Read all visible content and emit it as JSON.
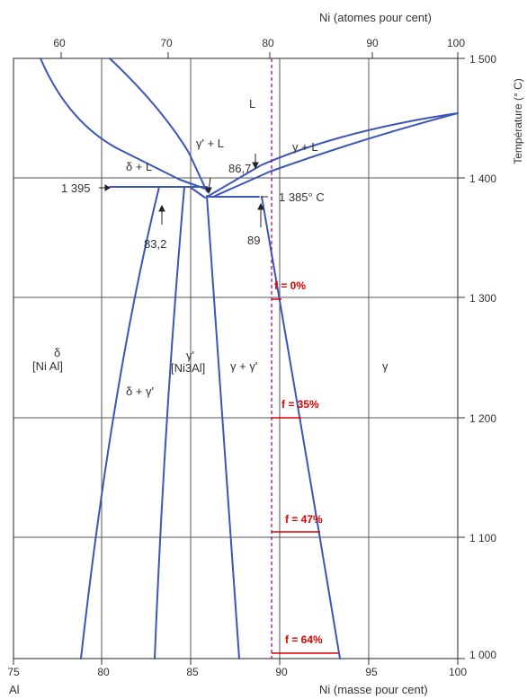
{
  "axes": {
    "top_title": "Ni (atomes pour cent)",
    "bottom_title": "Ni (masse pour cent)",
    "right_title": "Température (° C)",
    "bottom_left_label": "Al",
    "top_ticks": [
      "60",
      "70",
      "80",
      "90",
      "100"
    ],
    "bottom_ticks": [
      "75",
      "80",
      "85",
      "90",
      "95",
      "100"
    ],
    "right_ticks": [
      "1 500",
      "1 400",
      "1 300",
      "1 200",
      "1 100",
      "1 000"
    ]
  },
  "phases": {
    "liquid": "L",
    "delta_l": "δ + L",
    "gamma_prime_l": "γ' + L",
    "gamma_l": "γ + L",
    "delta": "δ",
    "nial": "[Ni Al]",
    "delta_gamma_prime": "δ + γ'",
    "gamma_prime": "γ'",
    "ni3al": "[Ni3Al]",
    "gamma_gamma_prime": "γ + γ'",
    "gamma": "γ"
  },
  "annotations": {
    "t1395": "1 395",
    "t1385": "1 385° C",
    "c867": "86,7",
    "c832": "83,2",
    "c89": "89"
  },
  "fractions": [
    "f = 0%",
    "f = 35%",
    "f = 47%",
    "f = 64%"
  ],
  "colors": {
    "phase_line": "#3b55b8",
    "grid": "#555555",
    "marker": "#e00000",
    "dashed_line": "#a0139b"
  }
}
